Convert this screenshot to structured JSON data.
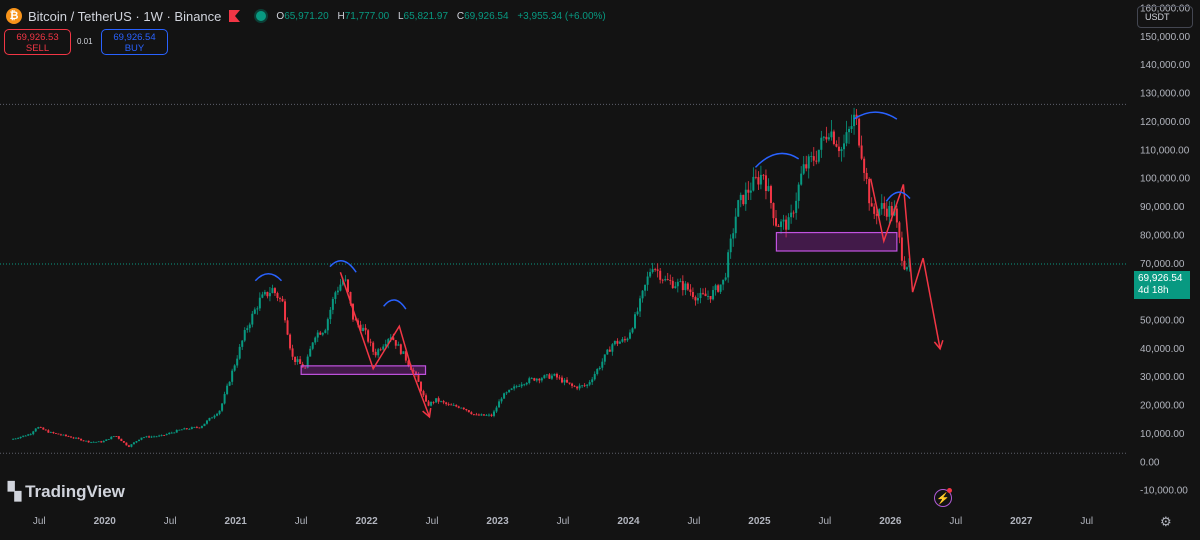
{
  "header": {
    "symbol_icon": "bitcoin-icon",
    "title": "Bitcoin / TetherUS · 1W · Binance",
    "open_label": "O",
    "open": "65,971.20",
    "high_label": "H",
    "high": "71,777.00",
    "low_label": "L",
    "low": "65,821.97",
    "close_label": "C",
    "close": "69,926.54",
    "change": "+3,955.34 (+6.00%)"
  },
  "trade": {
    "sell_price": "69,926.53",
    "sell_label": "SELL",
    "spread": "0.01",
    "buy_price": "69,926.54",
    "buy_label": "BUY"
  },
  "currency_button": "USDT",
  "current_price": {
    "value": "69,926.54",
    "countdown": "4d 18h"
  },
  "logo_text": "TradingView",
  "colors": {
    "up": "#089981",
    "down": "#f23645",
    "annotation_red": "#f23645",
    "annotation_blue": "#2962ff",
    "box": "#9c27b0"
  },
  "chart_data": {
    "type": "candlestick",
    "x_ticks": [
      "Jul",
      "2020",
      "Jul",
      "2021",
      "Jul",
      "2022",
      "Jul",
      "2023",
      "Jul",
      "2024",
      "Jul",
      "2025",
      "Jul",
      "2026",
      "Jul",
      "2027",
      "Jul"
    ],
    "y_ticks": [
      "160,000.00",
      "150,000.00",
      "140,000.00",
      "130,000.00",
      "120,000.00",
      "110,000.00",
      "100,000.00",
      "90,000.00",
      "80,000.00",
      "70,000.00",
      "60,000.00",
      "50,000.00",
      "40,000.00",
      "30,000.00",
      "20,000.00",
      "10,000.00",
      "0.00",
      "-10,000.00"
    ],
    "ylim": [
      -14000,
      163000
    ],
    "xlim": [
      2019.2,
      2027.8
    ],
    "grid": false,
    "price_path": [
      [
        2019.3,
        8000
      ],
      [
        2019.45,
        10000
      ],
      [
        2019.5,
        12500
      ],
      [
        2019.6,
        10500
      ],
      [
        2019.75,
        9000
      ],
      [
        2019.9,
        7200
      ],
      [
        2020.0,
        7200
      ],
      [
        2020.1,
        9500
      ],
      [
        2020.2,
        5500
      ],
      [
        2020.3,
        8800
      ],
      [
        2020.45,
        9300
      ],
      [
        2020.6,
        11500
      ],
      [
        2020.75,
        12500
      ],
      [
        2020.9,
        18500
      ],
      [
        2021.0,
        33000
      ],
      [
        2021.1,
        47000
      ],
      [
        2021.2,
        57000
      ],
      [
        2021.3,
        61000
      ],
      [
        2021.38,
        56000
      ],
      [
        2021.45,
        37000
      ],
      [
        2021.55,
        33000
      ],
      [
        2021.62,
        45000
      ],
      [
        2021.7,
        47000
      ],
      [
        2021.78,
        60000
      ],
      [
        2021.85,
        65000
      ],
      [
        2021.92,
        50000
      ],
      [
        2022.0,
        46500
      ],
      [
        2022.08,
        38000
      ],
      [
        2022.2,
        45000
      ],
      [
        2022.3,
        38000
      ],
      [
        2022.4,
        30000
      ],
      [
        2022.48,
        20000
      ],
      [
        2022.55,
        22000
      ],
      [
        2022.65,
        20000
      ],
      [
        2022.75,
        19500
      ],
      [
        2022.85,
        16500
      ],
      [
        2022.98,
        16500
      ],
      [
        2023.05,
        23000
      ],
      [
        2023.2,
        28000
      ],
      [
        2023.3,
        29500
      ],
      [
        2023.45,
        30500
      ],
      [
        2023.6,
        26500
      ],
      [
        2023.7,
        27000
      ],
      [
        2023.8,
        34000
      ],
      [
        2023.9,
        42000
      ],
      [
        2024.0,
        43000
      ],
      [
        2024.08,
        52000
      ],
      [
        2024.2,
        70000
      ],
      [
        2024.3,
        64000
      ],
      [
        2024.45,
        62000
      ],
      [
        2024.55,
        58000
      ],
      [
        2024.65,
        59000
      ],
      [
        2024.75,
        64000
      ],
      [
        2024.85,
        90000
      ],
      [
        2024.95,
        97000
      ],
      [
        2025.05,
        102000
      ],
      [
        2025.15,
        84000
      ],
      [
        2025.25,
        84000
      ],
      [
        2025.35,
        103000
      ],
      [
        2025.45,
        108000
      ],
      [
        2025.55,
        118000
      ],
      [
        2025.65,
        110000
      ],
      [
        2025.75,
        122000
      ],
      [
        2025.8,
        110000
      ],
      [
        2025.88,
        87000
      ],
      [
        2025.95,
        90000
      ],
      [
        2026.05,
        88000
      ],
      [
        2026.12,
        70000
      ],
      [
        2026.15,
        69926
      ]
    ],
    "key_levels": {
      "dotted_high": 126200,
      "dotted_current": 69926.54,
      "dotted_low": 3200
    },
    "annotations": {
      "zones": [
        {
          "from": 2021.5,
          "to": 2022.45,
          "low": 31000,
          "high": 34000
        },
        {
          "from": 2025.13,
          "to": 2026.05,
          "low": 74500,
          "high": 81000
        }
      ],
      "red_paths": [
        [
          [
            2021.8,
            67000
          ],
          [
            2022.05,
            33000
          ],
          [
            2022.25,
            48000
          ],
          [
            2022.35,
            32000
          ],
          [
            2022.48,
            16000
          ]
        ],
        [
          [
            2025.85,
            100000
          ],
          [
            2025.95,
            78000
          ],
          [
            2026.1,
            98000
          ],
          [
            2026.17,
            60000
          ],
          [
            2026.25,
            72000
          ],
          [
            2026.38,
            40000
          ]
        ]
      ],
      "blue_arcs": [
        [
          [
            2021.15,
            64000
          ],
          [
            2021.35,
            64000
          ]
        ],
        [
          [
            2021.72,
            69000
          ],
          [
            2021.92,
            67000
          ]
        ],
        [
          [
            2022.13,
            55000
          ],
          [
            2022.3,
            54000
          ]
        ],
        [
          [
            2024.97,
            104000
          ],
          [
            2025.3,
            107000
          ]
        ],
        [
          [
            2025.72,
            121000
          ],
          [
            2026.05,
            121000
          ]
        ],
        [
          [
            2025.97,
            92000
          ],
          [
            2026.15,
            93000
          ]
        ]
      ]
    }
  }
}
